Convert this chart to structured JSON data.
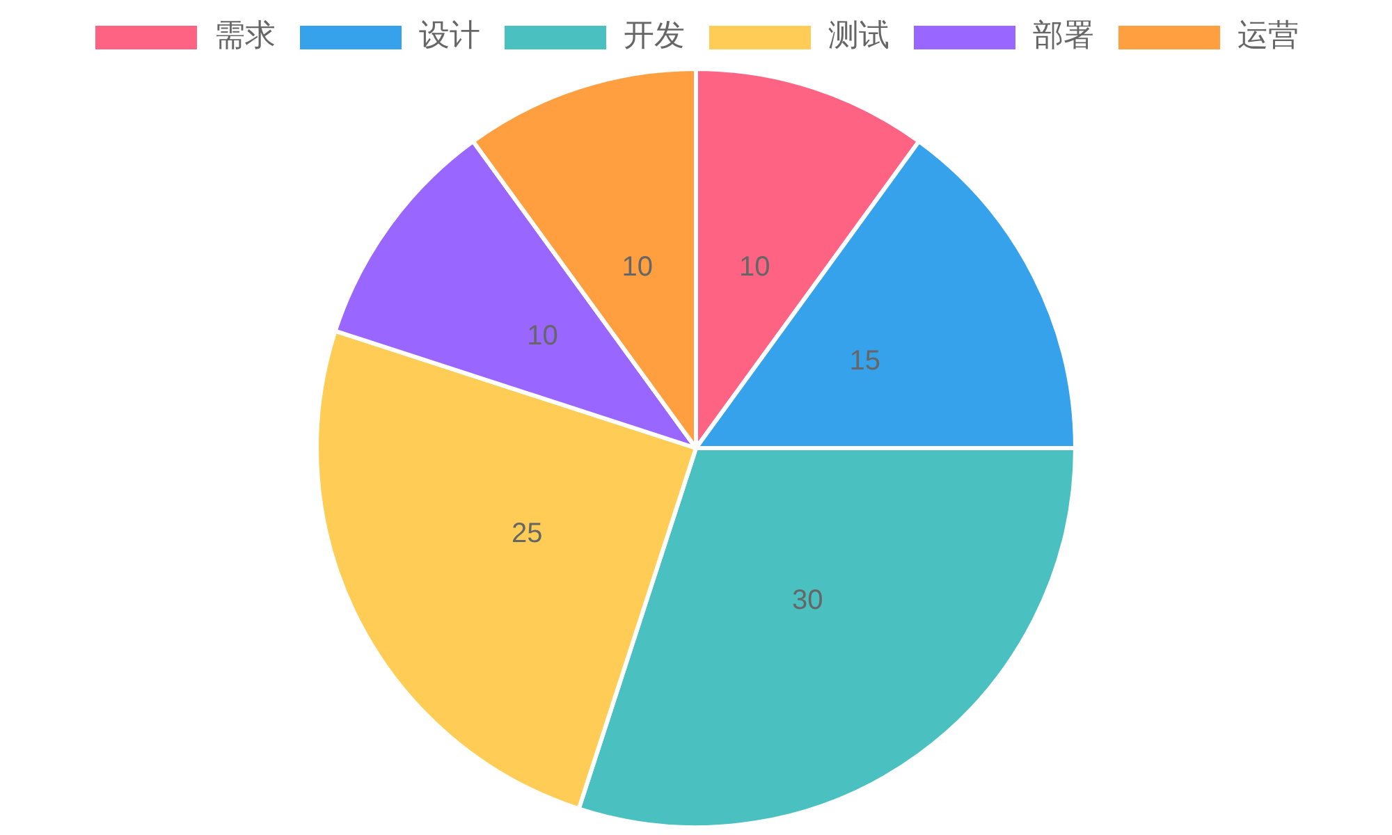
{
  "chart_data": {
    "type": "pie",
    "categories": [
      "需求",
      "设计",
      "开发",
      "测试",
      "部署",
      "运营"
    ],
    "values": [
      10,
      15,
      30,
      25,
      10,
      10
    ],
    "colors": [
      "#ff6384",
      "#36a2eb",
      "#4bc0c0",
      "#ffcd56",
      "#9966ff",
      "#ff9f40"
    ],
    "legend": "top",
    "data_labels": true
  }
}
